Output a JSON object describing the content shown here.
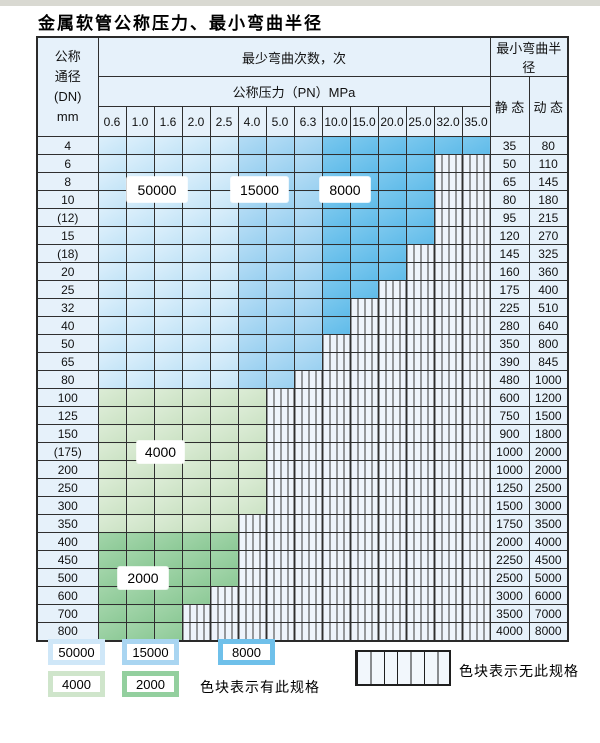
{
  "page": {
    "title": "金属软管公称压力、最小弯曲半径"
  },
  "table": {
    "header": {
      "dn_lines": [
        "公称",
        "通径",
        "(DN)",
        "mm"
      ],
      "bend_cycles_label": "最少弯曲次数，次",
      "pressure_label": "公称压力（PN）MPa",
      "pressure_values": [
        "0.6",
        "1.0",
        "1.6",
        "2.0",
        "2.5",
        "4.0",
        "5.0",
        "6.3",
        "10.0",
        "15.0",
        "20.0",
        "25.0",
        "32.0",
        "35.0"
      ],
      "radius_label": "最小弯曲半径",
      "static_label": "静 态",
      "dynamic_label": "动 态"
    },
    "blue_zone_by_column": {
      "light_50000": [
        0,
        4
      ],
      "medium_15000": [
        5,
        7
      ],
      "dark_8000": [
        8,
        13
      ]
    },
    "rows": [
      {
        "dn": "4",
        "color": "blue",
        "span": 14,
        "static": "35",
        "dynamic": "80"
      },
      {
        "dn": "6",
        "color": "blue",
        "span": 12,
        "static": "50",
        "dynamic": "110"
      },
      {
        "dn": "8",
        "color": "blue",
        "span": 12,
        "static": "65",
        "dynamic": "145"
      },
      {
        "dn": "10",
        "color": "blue",
        "span": 12,
        "static": "80",
        "dynamic": "180"
      },
      {
        "dn": "(12)",
        "color": "blue",
        "span": 12,
        "static": "95",
        "dynamic": "215"
      },
      {
        "dn": "15",
        "color": "blue",
        "span": 12,
        "static": "120",
        "dynamic": "270"
      },
      {
        "dn": "(18)",
        "color": "blue",
        "span": 11,
        "static": "145",
        "dynamic": "325"
      },
      {
        "dn": "20",
        "color": "blue",
        "span": 11,
        "static": "160",
        "dynamic": "360"
      },
      {
        "dn": "25",
        "color": "blue",
        "span": 10,
        "static": "175",
        "dynamic": "400"
      },
      {
        "dn": "32",
        "color": "blue",
        "span": 9,
        "static": "225",
        "dynamic": "510"
      },
      {
        "dn": "40",
        "color": "blue",
        "span": 9,
        "static": "280",
        "dynamic": "640"
      },
      {
        "dn": "50",
        "color": "blue",
        "span": 8,
        "static": "350",
        "dynamic": "800"
      },
      {
        "dn": "65",
        "color": "blue",
        "span": 8,
        "static": "390",
        "dynamic": "845"
      },
      {
        "dn": "80",
        "color": "blue",
        "span": 7,
        "static": "480",
        "dynamic": "1000"
      },
      {
        "dn": "100",
        "color": "green",
        "shade": "light",
        "span": 6,
        "static": "600",
        "dynamic": "1200"
      },
      {
        "dn": "125",
        "color": "green",
        "shade": "light",
        "span": 6,
        "static": "750",
        "dynamic": "1500"
      },
      {
        "dn": "150",
        "color": "green",
        "shade": "light",
        "span": 6,
        "static": "900",
        "dynamic": "1800"
      },
      {
        "dn": "(175)",
        "color": "green",
        "shade": "light",
        "span": 6,
        "static": "1000",
        "dynamic": "2000"
      },
      {
        "dn": "200",
        "color": "green",
        "shade": "light",
        "span": 6,
        "static": "1000",
        "dynamic": "2000"
      },
      {
        "dn": "250",
        "color": "green",
        "shade": "light",
        "span": 6,
        "static": "1250",
        "dynamic": "2500"
      },
      {
        "dn": "300",
        "color": "green",
        "shade": "light",
        "span": 6,
        "static": "1500",
        "dynamic": "3000"
      },
      {
        "dn": "350",
        "color": "green",
        "shade": "light",
        "span": 5,
        "static": "1750",
        "dynamic": "3500"
      },
      {
        "dn": "400",
        "color": "green",
        "shade": "dark",
        "span": 5,
        "static": "2000",
        "dynamic": "4000"
      },
      {
        "dn": "450",
        "color": "green",
        "shade": "dark",
        "span": 5,
        "static": "2250",
        "dynamic": "4500"
      },
      {
        "dn": "500",
        "color": "green",
        "shade": "dark",
        "span": 5,
        "static": "2500",
        "dynamic": "5000"
      },
      {
        "dn": "600",
        "color": "green",
        "shade": "dark",
        "span": 4,
        "static": "3000",
        "dynamic": "6000"
      },
      {
        "dn": "700",
        "color": "green",
        "shade": "dark",
        "span": 3,
        "static": "3500",
        "dynamic": "7000"
      },
      {
        "dn": "800",
        "color": "green",
        "shade": "dark",
        "span": 3,
        "static": "4000",
        "dynamic": "8000"
      }
    ]
  },
  "overlays": {
    "cycles_50000": "50000",
    "cycles_15000": "15000",
    "cycles_8000": "8000",
    "cycles_4000": "4000",
    "cycles_2000": "2000"
  },
  "legend": {
    "items": [
      {
        "label": "50000",
        "color": "#cfe7f8"
      },
      {
        "label": "15000",
        "color": "#a9d5f1"
      },
      {
        "label": "8000",
        "color": "#6fc0ea"
      },
      {
        "label": "4000",
        "color": "#cfe5cb"
      },
      {
        "label": "2000",
        "color": "#93cf9e"
      }
    ],
    "has_spec_text": "色块表示有此规格",
    "no_spec_text": "色块表示无此规格"
  },
  "colors": {
    "blue_light": "#cde9f9",
    "blue_medium": "#a6d6f2",
    "blue_dark": "#6dc1ec",
    "green_light": "#d3e7cd",
    "green_dark": "#97cfa0",
    "header_bg": "#e6f1fa",
    "hatch_bg": "#eef4fb",
    "border": "#2f2f2f"
  }
}
